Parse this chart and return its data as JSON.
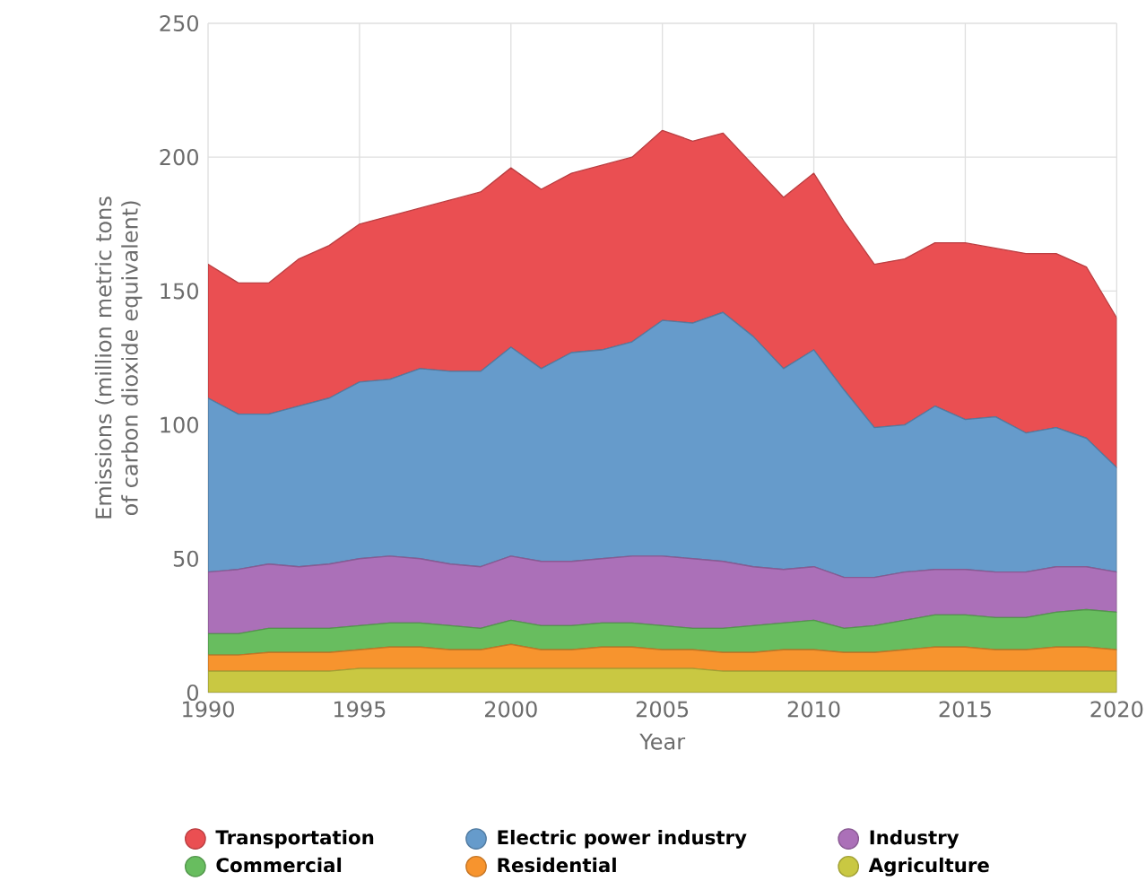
{
  "chart_data": {
    "type": "area",
    "stacked": true,
    "xlabel": "Year",
    "ylabel": "Emissions (million metric tons of carbon dioxide equivalent)",
    "x": [
      1990,
      1991,
      1992,
      1993,
      1994,
      1995,
      1996,
      1997,
      1998,
      1999,
      2000,
      2001,
      2002,
      2003,
      2004,
      2005,
      2006,
      2007,
      2008,
      2009,
      2010,
      2011,
      2012,
      2013,
      2014,
      2015,
      2016,
      2017,
      2018,
      2019,
      2020
    ],
    "xlim": [
      1990,
      2020
    ],
    "xticks": [
      1990,
      1995,
      2000,
      2005,
      2010,
      2015,
      2020
    ],
    "ylim": [
      0,
      250
    ],
    "yticks": [
      0,
      50,
      100,
      150,
      200,
      250
    ],
    "grid": true,
    "legend": "bottom",
    "series": [
      {
        "name": "Agriculture",
        "color": "#c9c842",
        "values": [
          8,
          8,
          8,
          8,
          8,
          9,
          9,
          9,
          9,
          9,
          9,
          9,
          9,
          9,
          9,
          9,
          9,
          8,
          8,
          8,
          8,
          8,
          8,
          8,
          8,
          8,
          8,
          8,
          8,
          8,
          8
        ]
      },
      {
        "name": "Residential",
        "color": "#f7942e",
        "values": [
          6,
          6,
          7,
          7,
          7,
          7,
          8,
          8,
          7,
          7,
          9,
          7,
          7,
          8,
          8,
          7,
          7,
          7,
          7,
          8,
          8,
          7,
          7,
          8,
          9,
          9,
          8,
          8,
          9,
          9,
          8
        ]
      },
      {
        "name": "Commercial",
        "color": "#68bd5f",
        "values": [
          8,
          8,
          9,
          9,
          9,
          9,
          9,
          9,
          9,
          8,
          9,
          9,
          9,
          9,
          9,
          9,
          8,
          9,
          10,
          10,
          11,
          9,
          10,
          11,
          12,
          12,
          12,
          12,
          13,
          14,
          14
        ]
      },
      {
        "name": "Industry",
        "color": "#ab70b8",
        "values": [
          23,
          24,
          24,
          23,
          24,
          25,
          25,
          24,
          23,
          23,
          24,
          24,
          24,
          24,
          25,
          26,
          26,
          25,
          22,
          20,
          20,
          19,
          18,
          18,
          17,
          17,
          17,
          17,
          17,
          16,
          15
        ]
      },
      {
        "name": "Electric power industry",
        "color": "#669bcb",
        "values": [
          65,
          58,
          56,
          60,
          62,
          66,
          66,
          71,
          72,
          73,
          78,
          72,
          78,
          78,
          80,
          88,
          88,
          93,
          86,
          75,
          81,
          70,
          56,
          55,
          61,
          56,
          58,
          52,
          52,
          48,
          39
        ]
      },
      {
        "name": "Transportation",
        "color": "#ea4f52",
        "values": [
          50,
          49,
          49,
          55,
          57,
          59,
          61,
          60,
          64,
          67,
          67,
          67,
          67,
          69,
          69,
          71,
          68,
          67,
          64,
          64,
          66,
          63,
          61,
          62,
          61,
          66,
          63,
          67,
          65,
          64,
          56
        ]
      }
    ]
  }
}
